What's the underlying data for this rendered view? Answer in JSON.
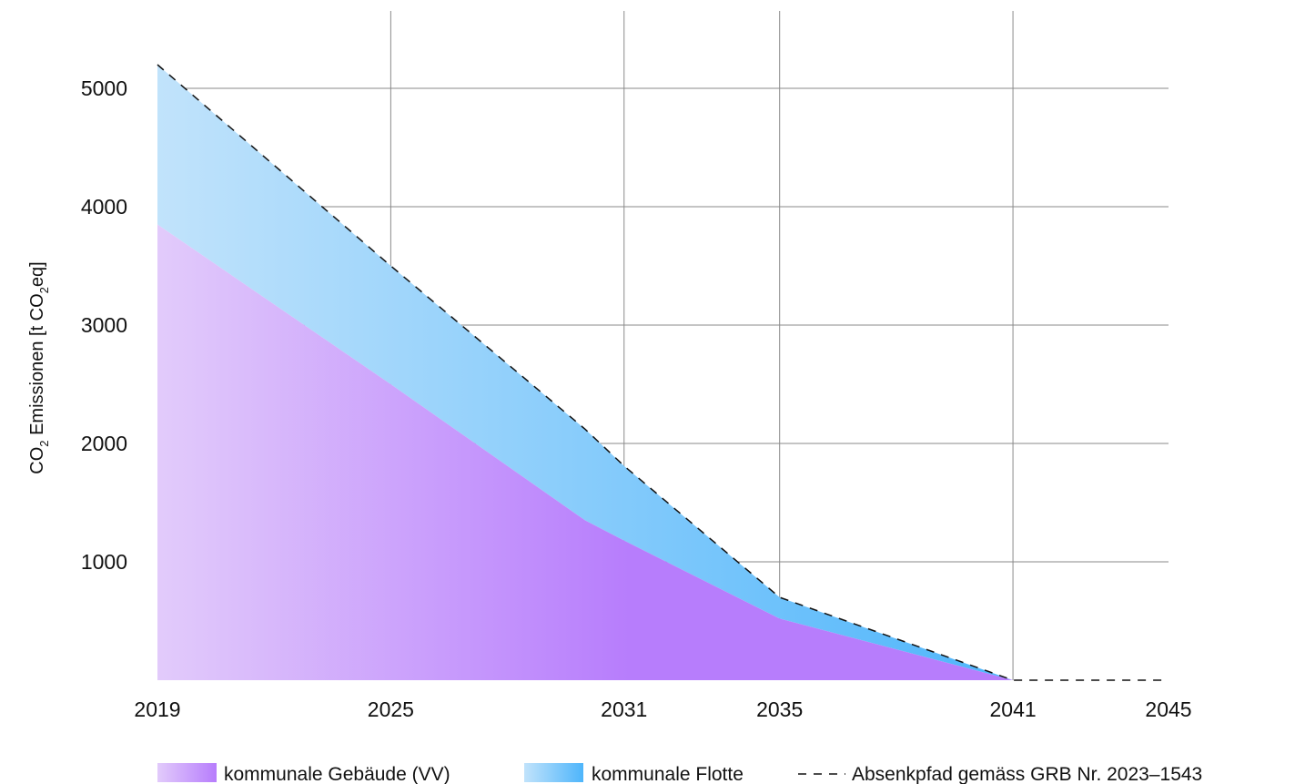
{
  "chart_data": {
    "type": "area",
    "stacked": true,
    "x_ticks": [
      "2019",
      "2025",
      "2031",
      "2035",
      "2041",
      "2045"
    ],
    "x_tick_values": [
      2019,
      2025,
      2031,
      2035,
      2041,
      2045
    ],
    "xlim": [
      2019,
      2045
    ],
    "y_ticks": [
      "1000",
      "2000",
      "3000",
      "4000",
      "5000"
    ],
    "y_tick_values": [
      1000,
      2000,
      3000,
      4000,
      5000
    ],
    "ylim": [
      0,
      5200
    ],
    "ylabel": {
      "prefix": "CO",
      "sub1": "2",
      "middle": " Emissionen [t CO",
      "sub2": "2",
      "suffix": "eq]"
    },
    "grid": true,
    "legend_position": "bottom",
    "series": [
      {
        "name": "kommunale Gebäude (VV)",
        "key": "gebaeude",
        "color_light": "#e2cbfb",
        "color_dark": "#b77dfc",
        "x": [
          2019,
          2025,
          2030,
          2031,
          2035,
          2041
        ],
        "y": [
          3850,
          2500,
          1350,
          1180,
          520,
          0
        ]
      },
      {
        "name": "kommunale Flotte",
        "key": "flotte",
        "color_light": "#c1e3fb",
        "color_dark": "#4eb5fb",
        "x": [
          2019,
          2025,
          2030,
          2031,
          2035,
          2041
        ],
        "y": [
          1350,
          1000,
          770,
          630,
          180,
          0
        ]
      }
    ],
    "reference_line": {
      "name": "Absenkpfad gemäss GRB Nr. 2023–1543",
      "style": "dashed",
      "color": "#111111",
      "x": [
        2019,
        2025,
        2030,
        2031,
        2035,
        2041,
        2045
      ],
      "y": [
        5200,
        3500,
        2120,
        1810,
        700,
        0,
        0
      ]
    }
  }
}
